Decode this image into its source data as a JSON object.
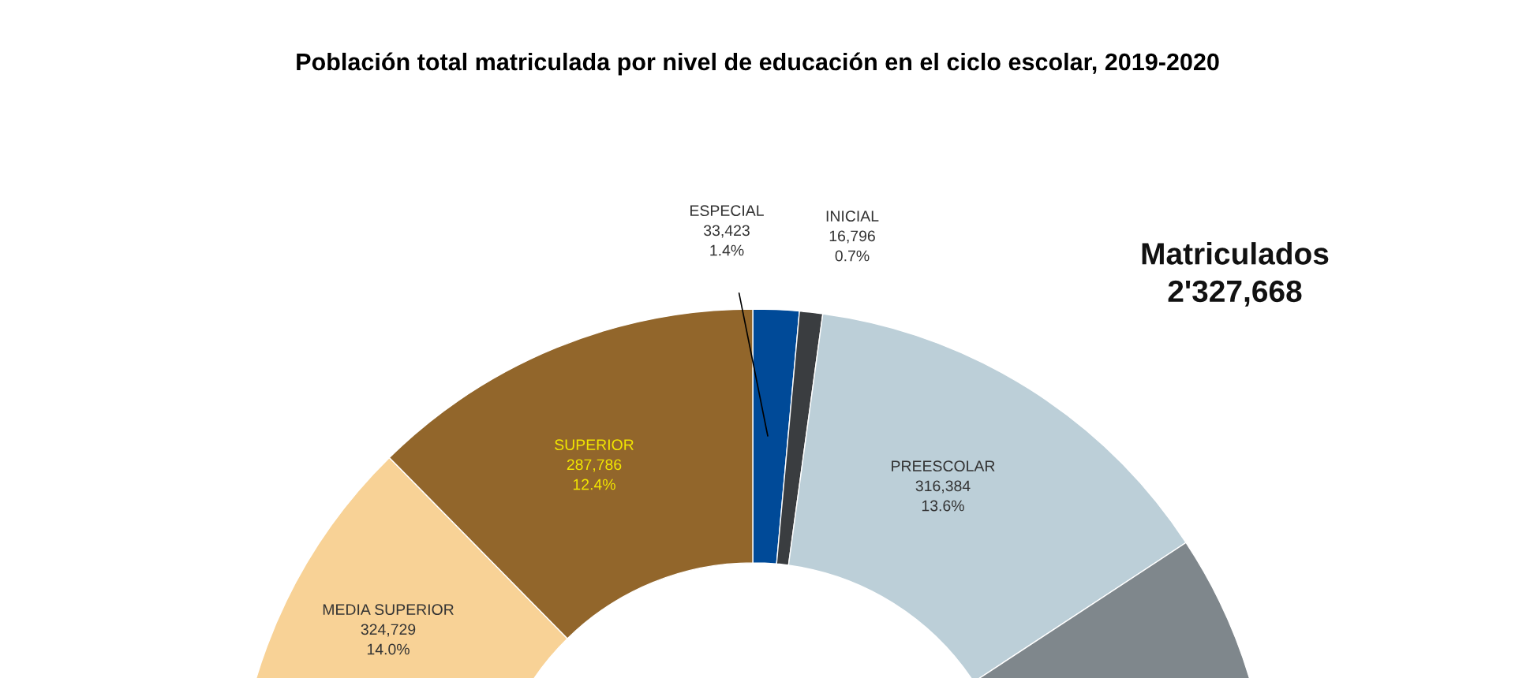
{
  "chart_data": {
    "type": "donut",
    "title": "Población total matriculada por nivel de educación en el ciclo escolar, 2019-2020",
    "categories": [
      "ESPECIAL",
      "INICIAL",
      "PREESCOLAR",
      null,
      "MEDIA SUPERIOR",
      "SUPERIOR"
    ],
    "values": [
      33423,
      16796,
      316384,
      1348550,
      324729,
      287786
    ],
    "colors": [
      "#004a98",
      "#3a3d40",
      "#bccfd8",
      "#7f878c",
      "#f8d296",
      "#92662b"
    ],
    "value_labels": [
      "33,423\n1.4%",
      "16,796\n0.7%",
      "316,384\n13.6%",
      null,
      "324,729\n14.0%",
      "287,786\n12.4%"
    ],
    "annotations": [
      "Matriculados\n2'327,668"
    ],
    "legend": false
  }
}
